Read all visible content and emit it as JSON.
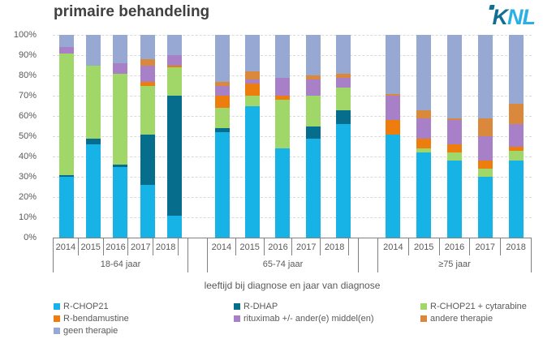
{
  "logo": {
    "k": "K",
    "nl": "NL"
  },
  "chart_data": {
    "type": "bar",
    "stacked": true,
    "title": "primaire behandeling",
    "xlabel": "leeftijd bij diagnose en jaar van diagnose",
    "ylabel": "",
    "ylim": [
      0,
      100
    ],
    "yticks": [
      "100%",
      "90%",
      "80%",
      "70%",
      "60%",
      "50%",
      "40%",
      "30%",
      "20%",
      "10%",
      "0%"
    ],
    "grid": "dashed horizontal every 10%",
    "legend_position": "bottom",
    "groups": [
      {
        "label": "18-64 jaar",
        "years": [
          "2014",
          "2015",
          "2016",
          "2017",
          "2018"
        ]
      },
      {
        "label": "65-74 jaar",
        "years": [
          "2014",
          "2015",
          "2016",
          "2017",
          "2018"
        ]
      },
      {
        "label": "≥75 jaar",
        "years": [
          "2014",
          "2015",
          "2016",
          "2017",
          "2018"
        ]
      }
    ],
    "colors": {
      "R-CHOP21": "#17b3e6",
      "R-DHAP": "#066e8c",
      "R-CHOP21 + cytarabine": "#a1d668",
      "R-bendamustine": "#ed7d0c",
      "rituximab +/- ander(e) middel(en)": "#a780c8",
      "andere therapie": "#d9883c",
      "geen therapie": "#97a8d2"
    },
    "series": [
      {
        "name": "R-CHOP21",
        "values": [
          [
            30,
            46,
            35,
            26,
            11
          ],
          [
            52,
            65,
            44,
            49,
            56
          ],
          [
            51,
            42,
            38,
            30,
            38
          ]
        ]
      },
      {
        "name": "R-DHAP",
        "values": [
          [
            1,
            3,
            1,
            25,
            59
          ],
          [
            2,
            0,
            0,
            6,
            7
          ],
          [
            0,
            0,
            0,
            0,
            0
          ]
        ]
      },
      {
        "name": "R-CHOP21 + cytarabine",
        "values": [
          [
            60,
            36,
            45,
            24,
            14
          ],
          [
            10,
            5,
            24,
            15,
            11
          ],
          [
            0,
            2,
            4,
            4,
            5
          ]
        ]
      },
      {
        "name": "R-bendamustine",
        "values": [
          [
            0,
            0,
            0,
            2,
            1
          ],
          [
            6,
            6,
            2,
            0,
            0
          ],
          [
            7,
            5,
            4,
            4,
            2
          ]
        ]
      },
      {
        "name": "rituximab +/- ander(e) middel(en)",
        "values": [
          [
            3,
            0,
            5,
            8,
            5
          ],
          [
            5,
            2,
            9,
            8,
            5
          ],
          [
            12,
            10,
            12,
            12,
            11
          ]
        ]
      },
      {
        "name": "andere therapie",
        "values": [
          [
            0,
            0,
            0,
            3,
            0
          ],
          [
            2,
            4,
            0,
            2,
            2
          ],
          [
            1,
            4,
            1,
            9,
            10
          ]
        ]
      },
      {
        "name": "geen therapie",
        "values": [
          [
            6,
            15,
            14,
            12,
            10
          ],
          [
            23,
            18,
            21,
            20,
            19
          ],
          [
            29,
            37,
            41,
            41,
            34
          ]
        ]
      }
    ],
    "legend_order": [
      "R-CHOP21",
      "R-DHAP",
      "R-CHOP21 + cytarabine",
      "R-bendamustine",
      "rituximab +/- ander(e) middel(en)",
      "andere therapie",
      "geen therapie"
    ]
  }
}
